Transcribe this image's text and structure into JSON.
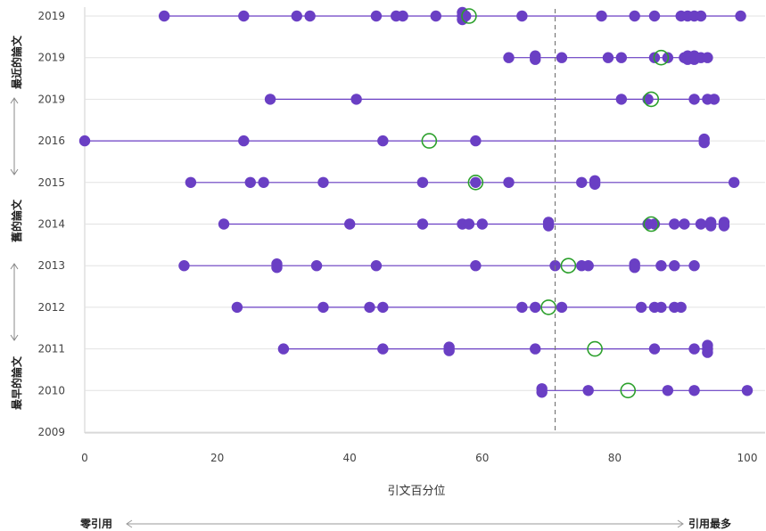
{
  "chart_data": {
    "type": "scatter",
    "xlabel": "引文百分位",
    "xlim": [
      0,
      100
    ],
    "xticks": [
      0,
      20,
      40,
      60,
      80,
      100
    ],
    "reference_line_x": 71,
    "row_labels": [
      "2019",
      "2019",
      "2019",
      "2016",
      "2015",
      "2014",
      "2013",
      "2012",
      "2011",
      "2010",
      "2009"
    ],
    "side_labels": {
      "top": "最近的論文",
      "middle": "舊的論文",
      "bottom": "最早的論文"
    },
    "footer": {
      "left": "零引用",
      "right": "引用最多"
    },
    "colors": {
      "point": "#6a3fc4",
      "line": "#6a3fc4",
      "highlight": "#2ca02c",
      "grid": "#e2e2e2",
      "ref": "#777777"
    },
    "rows": [
      {
        "label": "2019",
        "points": [
          12,
          24,
          32,
          34,
          44,
          47,
          48,
          53,
          57,
          57,
          57,
          57.5,
          66,
          78,
          83,
          86,
          90,
          91,
          92,
          93,
          99
        ],
        "highlight": 58
      },
      {
        "label": "2019",
        "points": [
          64,
          68,
          68,
          72,
          79,
          81,
          86,
          88,
          90.5,
          91,
          91,
          91.5,
          92,
          92,
          93,
          94
        ],
        "highlight": 87
      },
      {
        "label": "2019",
        "points": [
          28,
          41,
          81,
          85,
          92,
          94,
          95
        ],
        "highlight": 85.5
      },
      {
        "label": "2016",
        "points": [
          0,
          24,
          45,
          59,
          93.5,
          93.5
        ],
        "highlight": 52
      },
      {
        "label": "2015",
        "points": [
          16,
          25,
          27,
          36,
          51,
          59,
          64,
          75,
          77,
          77,
          98
        ],
        "highlight": 59
      },
      {
        "label": "2014",
        "points": [
          21,
          40,
          51,
          57,
          58,
          60,
          70,
          70,
          85,
          86,
          89,
          90.5,
          93,
          94.5,
          94.5,
          96.5,
          96.5
        ],
        "highlight": 85.5
      },
      {
        "label": "2013",
        "points": [
          15,
          29,
          29,
          35,
          44,
          59,
          71,
          75,
          76,
          83,
          83,
          87,
          89,
          92
        ],
        "highlight": 73
      },
      {
        "label": "2012",
        "points": [
          23,
          36,
          43,
          45,
          66,
          68,
          72,
          84,
          86,
          87,
          89,
          90
        ],
        "highlight": 70
      },
      {
        "label": "2011",
        "points": [
          30,
          45,
          55,
          55,
          68,
          86,
          92,
          94,
          94,
          94
        ],
        "highlight": 77
      },
      {
        "label": "2010",
        "points": [
          69,
          69,
          76,
          88,
          92,
          100
        ],
        "highlight": 82
      },
      {
        "label": "2009",
        "points": [],
        "highlight": null
      }
    ]
  }
}
